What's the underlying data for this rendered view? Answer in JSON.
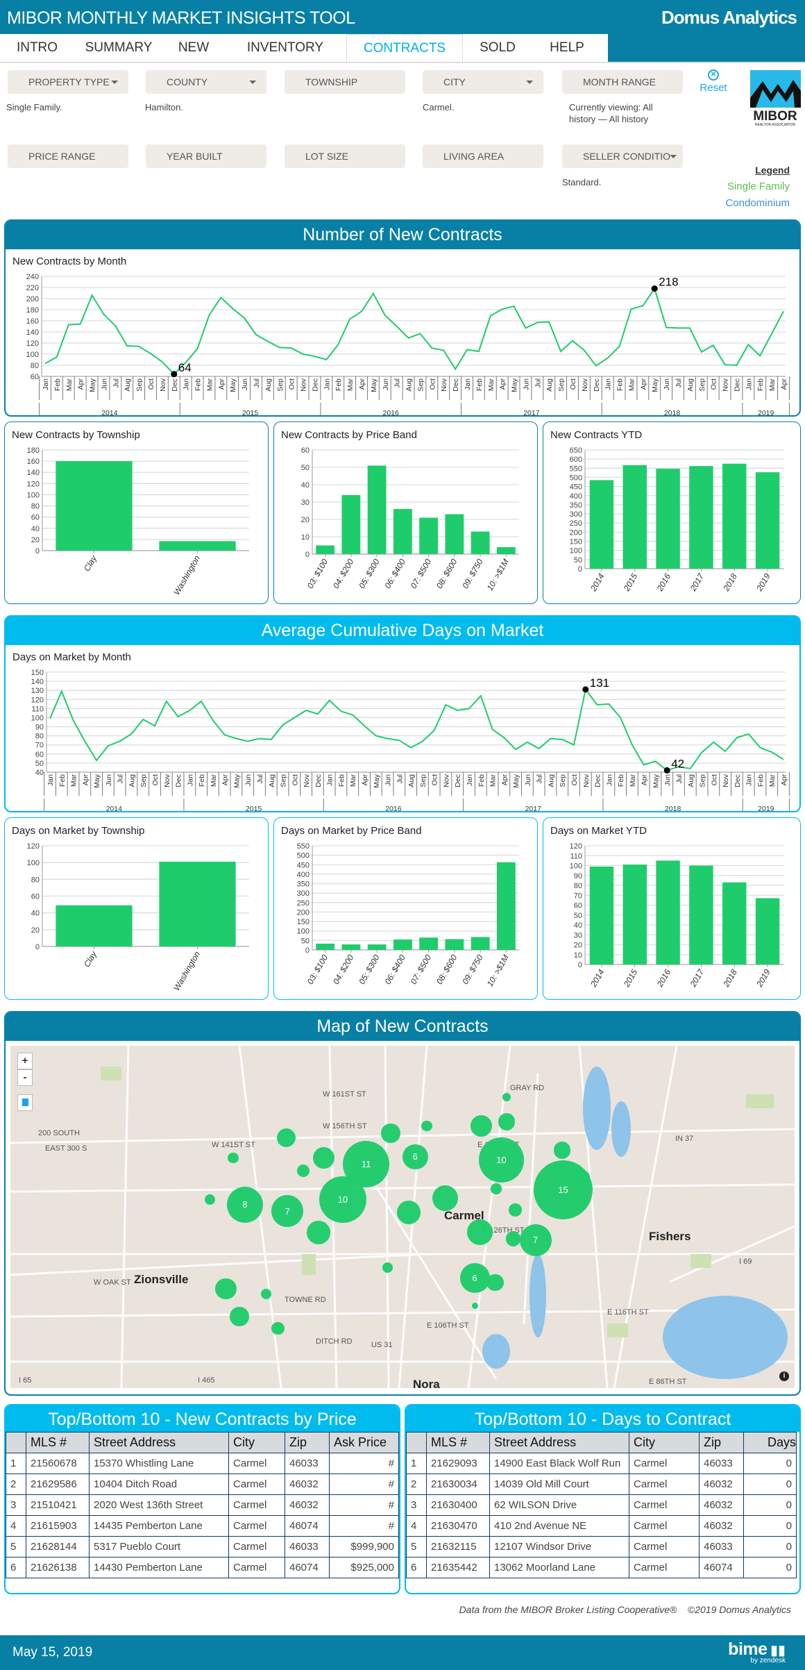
{
  "header": {
    "title": "MIBOR MONTHLY MARKET INSIGHTS TOOL",
    "brand": "Domus Analytics"
  },
  "nav": {
    "tabs": [
      "INTRO",
      "SUMMARY",
      "NEW",
      "INVENTORY",
      "CONTRACTS",
      "SOLD",
      "HELP"
    ],
    "active": "CONTRACTS"
  },
  "filters": {
    "row1": [
      {
        "label": "PROPERTY TYPE",
        "icon": "filter-icon",
        "value": "Single Family."
      },
      {
        "label": "COUNTY",
        "icon": "filter-icon",
        "value": "Hamilton."
      },
      {
        "label": "TOWNSHIP",
        "icon": "",
        "value": ""
      },
      {
        "label": "CITY",
        "icon": "filter-icon",
        "value": "Carmel."
      },
      {
        "label": "MONTH RANGE",
        "icon": "",
        "value": "Currently viewing: All history — All history"
      }
    ],
    "row2": [
      {
        "label": "PRICE RANGE",
        "icon": "",
        "value": ""
      },
      {
        "label": "YEAR BUILT",
        "icon": "",
        "value": ""
      },
      {
        "label": "LOT SIZE",
        "icon": "",
        "value": ""
      },
      {
        "label": "LIVING AREA",
        "icon": "",
        "value": ""
      },
      {
        "label": "SELLER CONDITIO",
        "icon": "filter-icon",
        "value": "Standard."
      }
    ]
  },
  "reset": {
    "label": "Reset",
    "icon": "close-circle-icon"
  },
  "logo": {
    "text": "MIBOR",
    "sub": "REALTOR ASSOCIATION"
  },
  "legend": {
    "title": "Legend",
    "items": [
      {
        "label": "Single Family",
        "color": "#5cbf4f"
      },
      {
        "label": "Condominium",
        "color": "#3d8fd9"
      }
    ]
  },
  "sections": {
    "contracts": "Number of New Contracts",
    "dom": "Average Cumulative Days on Market",
    "map": "Map of New Contracts"
  },
  "colors": {
    "header": "#0880a5",
    "accent": "#00bbee",
    "series": "#1fcc6b",
    "active_tab": "#00aee8"
  },
  "chart_data": [
    {
      "type": "line",
      "title": "New Contracts by Month",
      "ylim": [
        60,
        240
      ],
      "ytick": 20,
      "grid": true,
      "years": [
        "2014",
        "2015",
        "2016",
        "2017",
        "2018",
        "2019"
      ],
      "x": [
        "Jan 2014",
        "Feb 2014",
        "Mar 2014",
        "Apr 2014",
        "May 2014",
        "Jun 2014",
        "Jul 2014",
        "Aug 2014",
        "Sep 2014",
        "Oct 2014",
        "Nov 2014",
        "Dec 2014",
        "Jan 2015",
        "Feb 2015",
        "Mar 2015",
        "Apr 2015",
        "May 2015",
        "Jun 2015",
        "Jul 2015",
        "Aug 2015",
        "Sep 2015",
        "Oct 2015",
        "Nov 2015",
        "Dec 2015",
        "Jan 2016",
        "Feb 2016",
        "Mar 2016",
        "Apr 2016",
        "May 2016",
        "Jun 2016",
        "Jul 2016",
        "Aug 2016",
        "Sep 2016",
        "Oct 2016",
        "Nov 2016",
        "Dec 2016",
        "Jan 2017",
        "Feb 2017",
        "Mar 2017",
        "Apr 2017",
        "May 2017",
        "Jun 2017",
        "Jul 2017",
        "Aug 2017",
        "Sep 2017",
        "Oct 2017",
        "Nov 2017",
        "Dec 2017",
        "Jan 2018",
        "Feb 2018",
        "Mar 2018",
        "Apr 2018",
        "May 2018",
        "Jun 2018",
        "Jul 2018",
        "Aug 2018",
        "Sep 2018",
        "Oct 2018",
        "Nov 2018",
        "Dec 2018",
        "Jan 2019",
        "Feb 2019",
        "Mar 2019",
        "Apr 2019"
      ],
      "values": [
        83,
        95,
        153,
        154,
        206,
        172,
        151,
        115,
        114,
        101,
        86,
        64,
        85,
        110,
        170,
        202,
        182,
        165,
        135,
        123,
        112,
        111,
        100,
        96,
        90,
        117,
        163,
        177,
        209,
        170,
        150,
        129,
        137,
        111,
        107,
        73,
        108,
        105,
        169,
        181,
        186,
        147,
        157,
        158,
        105,
        124,
        107,
        79,
        93,
        114,
        181,
        187,
        218,
        148,
        147,
        147,
        104,
        116,
        81,
        80,
        117,
        97,
        137,
        177
      ],
      "annotations": [
        {
          "x": "Dec 2014",
          "label": "64"
        },
        {
          "x": "May 2018",
          "label": "218"
        }
      ]
    },
    {
      "type": "bar",
      "title": "New Contracts by Township",
      "categories": [
        "Clay",
        "Washington"
      ],
      "values": [
        160,
        17
      ],
      "ylim": [
        0,
        180
      ],
      "ytick": 20,
      "grid": true
    },
    {
      "type": "bar",
      "title": "New Contracts by Price Band",
      "categories": [
        "03: $100",
        "04: $200",
        "05: $300",
        "06: $400",
        "07: $500",
        "08: $600",
        "09: $750",
        "10: >$1M"
      ],
      "values": [
        5,
        34,
        51,
        26,
        21,
        23,
        13,
        4
      ],
      "ylim": [
        0,
        60
      ],
      "ytick": 10,
      "grid": true
    },
    {
      "type": "bar",
      "title": "New Contracts YTD",
      "categories": [
        "2014",
        "2015",
        "2016",
        "2017",
        "2018",
        "2019"
      ],
      "values": [
        485,
        567,
        547,
        562,
        575,
        528
      ],
      "ylim": [
        0,
        650
      ],
      "ytick": 50,
      "grid": true
    },
    {
      "type": "line",
      "title": "Days on Market by Month",
      "ylim": [
        40,
        150
      ],
      "ytick": 10,
      "grid": true,
      "years": [
        "2014",
        "2015",
        "2016",
        "2017",
        "2018",
        "2019"
      ],
      "x": [
        "Jan 2014",
        "Feb 2014",
        "Mar 2014",
        "Apr 2014",
        "May 2014",
        "Jun 2014",
        "Jul 2014",
        "Aug 2014",
        "Sep 2014",
        "Oct 2014",
        "Nov 2014",
        "Dec 2014",
        "Jan 2015",
        "Feb 2015",
        "Mar 2015",
        "Apr 2015",
        "May 2015",
        "Jun 2015",
        "Jul 2015",
        "Aug 2015",
        "Sep 2015",
        "Oct 2015",
        "Nov 2015",
        "Dec 2015",
        "Jan 2016",
        "Feb 2016",
        "Mar 2016",
        "Apr 2016",
        "May 2016",
        "Jun 2016",
        "Jul 2016",
        "Aug 2016",
        "Sep 2016",
        "Oct 2016",
        "Nov 2016",
        "Dec 2016",
        "Jan 2017",
        "Feb 2017",
        "Mar 2017",
        "Apr 2017",
        "May 2017",
        "Jun 2017",
        "Jul 2017",
        "Aug 2017",
        "Sep 2017",
        "Oct 2017",
        "Nov 2017",
        "Dec 2017",
        "Jan 2018",
        "Feb 2018",
        "Mar 2018",
        "Apr 2018",
        "May 2018",
        "Jun 2018",
        "Jul 2018",
        "Aug 2018",
        "Sep 2018",
        "Oct 2018",
        "Nov 2018",
        "Dec 2018",
        "Jan 2019",
        "Feb 2019",
        "Mar 2019",
        "Apr 2019"
      ],
      "values": [
        99,
        129,
        97,
        74,
        53,
        69,
        74,
        82,
        98,
        91,
        118,
        101,
        108,
        118,
        97,
        81,
        77,
        74,
        77,
        76,
        92,
        100,
        108,
        104,
        119,
        107,
        103,
        91,
        80,
        77,
        75,
        67,
        74,
        86,
        114,
        108,
        110,
        124,
        87,
        78,
        65,
        73,
        66,
        77,
        76,
        70,
        131,
        114,
        115,
        100,
        70,
        48,
        52,
        42,
        46,
        44,
        62,
        73,
        63,
        78,
        82,
        67,
        62,
        54
      ],
      "annotations": [
        {
          "x": "Nov 2017",
          "label": "131"
        },
        {
          "x": "Jun 2018",
          "label": "42"
        }
      ]
    },
    {
      "type": "bar",
      "title": "Days on Market by Township",
      "categories": [
        "Clay",
        "Washington"
      ],
      "values": [
        49,
        101
      ],
      "ylim": [
        0,
        120
      ],
      "ytick": 20,
      "grid": true
    },
    {
      "type": "bar",
      "title": "Days on Market by Price Band",
      "categories": [
        "03: $100",
        "04: $200",
        "05: $300",
        "06: $400",
        "07: $500",
        "08: $600",
        "09: $750",
        "10: >$1M"
      ],
      "values": [
        33,
        29,
        29,
        55,
        65,
        57,
        68,
        463
      ],
      "ylim": [
        0,
        550
      ],
      "ytick": 50,
      "grid": true
    },
    {
      "type": "bar",
      "title": "Days on Market YTD",
      "categories": [
        "2014",
        "2015",
        "2016",
        "2017",
        "2018",
        "2019"
      ],
      "values": [
        99,
        101,
        105,
        100,
        83,
        67
      ],
      "ylim": [
        0,
        120
      ],
      "ytick": 10,
      "grid": true
    }
  ],
  "map": {
    "zoom_in": "+",
    "zoom_out": "-",
    "cities": [
      "Zionsville",
      "Carmel",
      "Fishers",
      "Nora"
    ],
    "roads": [
      "W 141ST ST",
      "E 146TH ST",
      "E 126TH ST",
      "E 116TH ST",
      "E 106TH ST",
      "US 31",
      "I 465",
      "IN 37",
      "I 69",
      "I 65",
      "E 86TH ST",
      "W 156TH ST",
      "W 161ST ST",
      "200 SOUTH",
      "EAST 300 S",
      "W OAK ST",
      "DITCH RD",
      "TOWNE RD",
      "GRAY RD"
    ],
    "bubble_counts": [
      "11",
      "6",
      "10",
      "15",
      "10",
      "8",
      "7",
      "7",
      "6"
    ]
  },
  "tables": [
    {
      "title": "Top/Bottom 10 - New Contracts by Price",
      "columns": [
        "",
        "MLS #",
        "Street Address",
        "City",
        "Zip",
        "Ask Price"
      ],
      "rows": [
        [
          "1",
          "21560678",
          "15370 Whistling Lane",
          "Carmel",
          "46033",
          "#"
        ],
        [
          "2",
          "21629586",
          "10404 Ditch Road",
          "Carmel",
          "46032",
          "#"
        ],
        [
          "3",
          "21510421",
          "2020 West 136th Street",
          "Carmel",
          "46032",
          "#"
        ],
        [
          "4",
          "21615903",
          "14435 Pemberton Lane",
          "Carmel",
          "46074",
          "#"
        ],
        [
          "5",
          "21628144",
          "5317 Pueblo Court",
          "Carmel",
          "46033",
          "$999,900"
        ],
        [
          "6",
          "21626138",
          "14430 Pemberton Lane",
          "Carmel",
          "46074",
          "$925,000"
        ]
      ]
    },
    {
      "title": "Top/Bottom 10 - Days to Contract",
      "columns": [
        "",
        "MLS #",
        "Street Address",
        "City",
        "Zip",
        "Days"
      ],
      "rows": [
        [
          "1",
          "21629093",
          "14900 East Black Wolf Run",
          "Carmel",
          "46033",
          "0"
        ],
        [
          "2",
          "21630034",
          "14039 Old Mill Court",
          "Carmel",
          "46032",
          "0"
        ],
        [
          "3",
          "21630400",
          "62 WILSON Drive",
          "Carmel",
          "46032",
          "0"
        ],
        [
          "4",
          "21630470",
          "410 2nd Avenue NE",
          "Carmel",
          "46032",
          "0"
        ],
        [
          "5",
          "21632115",
          "12107 Windsor Drive",
          "Carmel",
          "46033",
          "0"
        ],
        [
          "6",
          "21635442",
          "13062 Moorland Lane",
          "Carmel",
          "46074",
          "0"
        ]
      ]
    }
  ],
  "footer": {
    "credit": "Data from the MIBOR Broker Listing Cooperative®",
    "copyright": "©2019 Domus Analytics",
    "date": "May 15, 2019",
    "powered": "bime",
    "powered_sub": "by zendesk"
  }
}
